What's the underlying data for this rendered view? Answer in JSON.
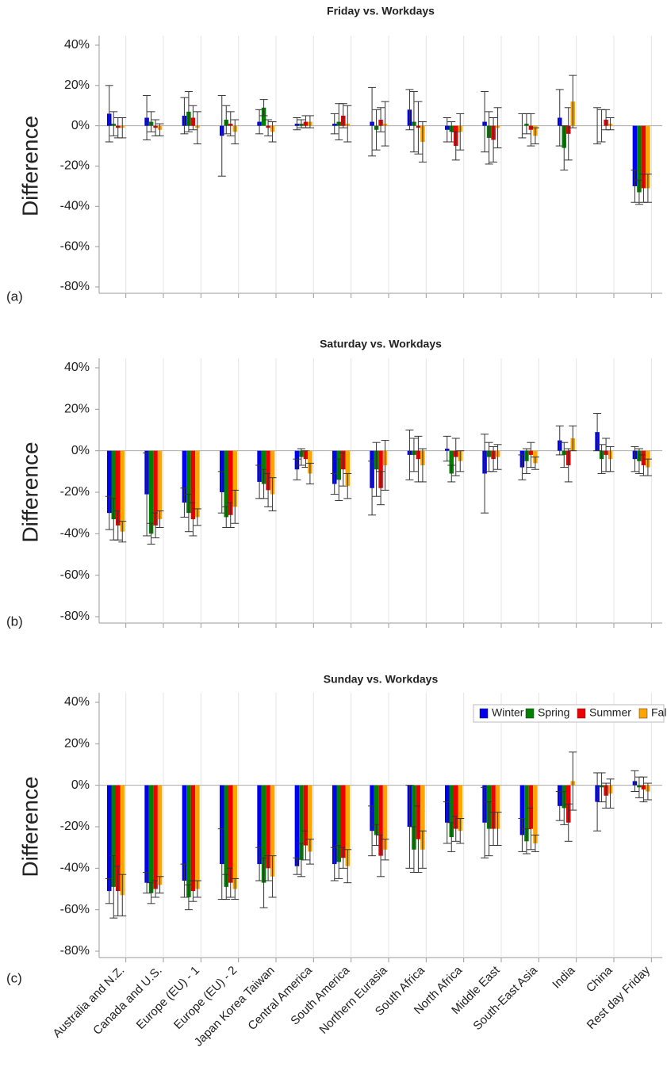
{
  "chart_data": [
    {
      "type": "bar",
      "title": "Friday vs. Workdays",
      "panel_label": "(a)",
      "y_label": "Difference",
      "categories": [
        null,
        null,
        null,
        null,
        null,
        null,
        null,
        null,
        null,
        null,
        null,
        null,
        null,
        null,
        null
      ],
      "ylim": [
        -80,
        40
      ],
      "yticks": [
        {
          "value": 40,
          "label": "40%"
        },
        {
          "value": 20,
          "label": "20%"
        },
        {
          "value": 0,
          "label": "0%"
        },
        {
          "value": -20,
          "label": "-20%"
        },
        {
          "value": -40,
          "label": "-40%"
        },
        {
          "value": -60,
          "label": "-60%"
        },
        {
          "value": -80,
          "label": "-80%"
        }
      ],
      "grid": true,
      "series": [
        {
          "color": "#0000ee",
          "values": [
            6,
            4,
            5,
            -5,
            2,
            1,
            1,
            2,
            8,
            -2,
            2,
            0,
            4,
            0,
            -30
          ],
          "errors": [
            14,
            11,
            9,
            20,
            6,
            3,
            5,
            17,
            10,
            6,
            15,
            6,
            14,
            9,
            8
          ]
        },
        {
          "color": "#008000",
          "values": [
            1,
            2,
            7,
            3,
            9,
            1,
            2,
            -2,
            2,
            -3,
            -6,
            1,
            -11,
            0,
            -33
          ],
          "errors": [
            6,
            5,
            10,
            7,
            4,
            2,
            9,
            10,
            15,
            5,
            13,
            5,
            11,
            8,
            6
          ]
        },
        {
          "color": "#ee0000",
          "values": [
            -1,
            -1,
            4,
            1,
            -1,
            2,
            5,
            3,
            -1,
            -10,
            -7,
            -2,
            -4,
            3,
            -31
          ],
          "errors": [
            5,
            4,
            6,
            6,
            4,
            3,
            6,
            6,
            13,
            7,
            11,
            8,
            13,
            5,
            7
          ]
        },
        {
          "color": "#ffa500",
          "values": [
            -1,
            -2,
            -1,
            -3,
            -3,
            2,
            1,
            1,
            -8,
            -3,
            -1,
            -5,
            12,
            1,
            -31
          ],
          "errors": [
            5,
            3,
            8,
            6,
            5,
            3,
            9,
            11,
            10,
            9,
            10,
            4,
            13,
            3,
            7
          ]
        }
      ]
    },
    {
      "type": "bar",
      "title": "Saturday vs. Workdays",
      "panel_label": "(b)",
      "y_label": "Difference",
      "categories": [
        null,
        null,
        null,
        null,
        null,
        null,
        null,
        null,
        null,
        null,
        null,
        null,
        null,
        null,
        null
      ],
      "ylim": [
        -80,
        40
      ],
      "yticks": [
        {
          "value": 40,
          "label": "40%"
        },
        {
          "value": 20,
          "label": "20%"
        },
        {
          "value": 0,
          "label": "0%"
        },
        {
          "value": -20,
          "label": "-20%"
        },
        {
          "value": -40,
          "label": "-40%"
        },
        {
          "value": -60,
          "label": "-60%"
        },
        {
          "value": -80,
          "label": "-80%"
        }
      ],
      "grid": true,
      "series": [
        {
          "color": "#0000ee",
          "values": [
            -30,
            -21,
            -25,
            -20,
            -15,
            -9,
            -16,
            -18,
            -2,
            1,
            -11,
            -8,
            5,
            9,
            -4
          ],
          "errors": [
            8,
            20,
            7,
            10,
            8,
            5,
            5,
            13,
            12,
            6,
            19,
            6,
            7,
            9,
            6
          ]
        },
        {
          "color": "#008000",
          "values": [
            -33,
            -40,
            -30,
            -32,
            -16,
            -3,
            -14,
            -9,
            -2,
            -11,
            -3,
            -5,
            -2,
            -4,
            -5
          ],
          "errors": [
            10,
            5,
            9,
            5,
            7,
            4,
            10,
            13,
            8,
            4,
            7,
            6,
            6,
            7,
            6
          ]
        },
        {
          "color": "#ee0000",
          "values": [
            -36,
            -36,
            -33,
            -31,
            -19,
            -4,
            -9,
            -18,
            -4,
            -3,
            -4,
            -2,
            -7,
            -2,
            -7
          ],
          "errors": [
            7,
            6,
            8,
            6,
            8,
            4,
            8,
            8,
            11,
            9,
            6,
            6,
            8,
            8,
            5
          ]
        },
        {
          "color": "#ffa500",
          "values": [
            -39,
            -33,
            -32,
            -27,
            -21,
            -11,
            -17,
            -7,
            -7,
            -5,
            -3,
            -6,
            6,
            -4,
            -8
          ],
          "errors": [
            5,
            4,
            4,
            8,
            8,
            5,
            6,
            12,
            8,
            5,
            6,
            3,
            6,
            6,
            4
          ]
        }
      ]
    },
    {
      "type": "bar",
      "title": "Sunday vs. Workdays",
      "panel_label": "(c)",
      "y_label": "Difference",
      "categories": [
        "Australia and N.Z.",
        "Canada and U.S.",
        "Europe (EU) - 1",
        "Europe (EU) - 2",
        "Japan Korea Taiwan",
        "Central America",
        "South America",
        "Northern Eurasia",
        "South Africa",
        "North Africa",
        "Middle East",
        "South-East Asia",
        "India",
        "China",
        "Rest day Friday"
      ],
      "ylim": [
        -80,
        40
      ],
      "yticks": [
        {
          "value": 40,
          "label": "40%"
        },
        {
          "value": 20,
          "label": "20%"
        },
        {
          "value": 0,
          "label": "0%"
        },
        {
          "value": -20,
          "label": "-20%"
        },
        {
          "value": -40,
          "label": "-40%"
        },
        {
          "value": -60,
          "label": "-60%"
        },
        {
          "value": -80,
          "label": "-80%"
        }
      ],
      "grid": true,
      "legend": "upper right",
      "series": [
        {
          "name": "Winter",
          "color": "#0000ee",
          "values": [
            -51,
            -47,
            -46,
            -38,
            -38,
            -39,
            -38,
            -22,
            -20,
            -18,
            -18,
            -24,
            -10,
            -8,
            2
          ],
          "errors": [
            6,
            5,
            8,
            17,
            8,
            4,
            8,
            12,
            20,
            10,
            17,
            8,
            7,
            14,
            5
          ]
        },
        {
          "name": "Spring",
          "color": "#008000",
          "values": [
            -49,
            -52,
            -54,
            -49,
            -47,
            -36,
            -37,
            -24,
            -31,
            -25,
            -21,
            -27,
            -11,
            -1,
            -1
          ],
          "errors": [
            15,
            5,
            6,
            6,
            12,
            8,
            8,
            5,
            11,
            7,
            13,
            6,
            8,
            7,
            5
          ]
        },
        {
          "name": "Summer",
          "color": "#ee0000",
          "values": [
            -51,
            -50,
            -51,
            -47,
            -40,
            -29,
            -35,
            -34,
            -26,
            -21,
            -21,
            -21,
            -18,
            -5,
            -2
          ],
          "errors": [
            12,
            4,
            5,
            7,
            6,
            7,
            5,
            10,
            16,
            6,
            8,
            10,
            9,
            6,
            6
          ]
        },
        {
          "name": "Fall",
          "color": "#ffa500",
          "values": [
            -53,
            -48,
            -50,
            -50,
            -44,
            -32,
            -39,
            -31,
            -31,
            -22,
            -21,
            -28,
            2,
            -4,
            -3
          ],
          "errors": [
            10,
            4,
            4,
            5,
            10,
            6,
            8,
            5,
            9,
            6,
            8,
            4,
            14,
            7,
            4
          ]
        }
      ]
    }
  ]
}
